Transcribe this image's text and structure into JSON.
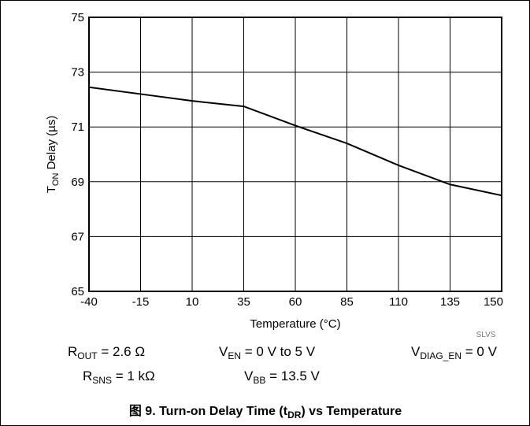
{
  "chart_data": {
    "type": "line",
    "categories": [
      "-40",
      "-15",
      "10",
      "35",
      "60",
      "85",
      "110",
      "135",
      "150"
    ],
    "series": [
      {
        "color": "#000000",
        "values": [
          72.45,
          72.2,
          71.95,
          71.75,
          71.05,
          70.4,
          69.6,
          68.9,
          68.5
        ]
      }
    ],
    "ylim": [
      65,
      75
    ],
    "yticks": [
      65,
      67,
      69,
      71,
      73,
      75
    ],
    "grid": true,
    "y_label": {
      "text": "T",
      "sub": "ON",
      "after": " Delay  (µs)"
    },
    "x_label": "Temperature (°C)",
    "watermark": "SLVS",
    "annotations": [
      {
        "text": "R",
        "sub": "OUT",
        "after": " = 2.6 Ω"
      },
      {
        "text": "V",
        "sub": "EN",
        "after": " = 0 V to 5 V"
      },
      {
        "text": "V",
        "sub": "DIAG_EN",
        "after": " = 0 V"
      },
      {
        "text": "R",
        "sub": "SNS",
        "after": " = 1 kΩ"
      },
      {
        "text": "V",
        "sub": "BB",
        "after": " = 13.5 V"
      }
    ],
    "caption": {
      "text": "图 9. Turn-on Delay Time (t",
      "sub": "DR",
      "after": ") vs Temperature"
    }
  }
}
